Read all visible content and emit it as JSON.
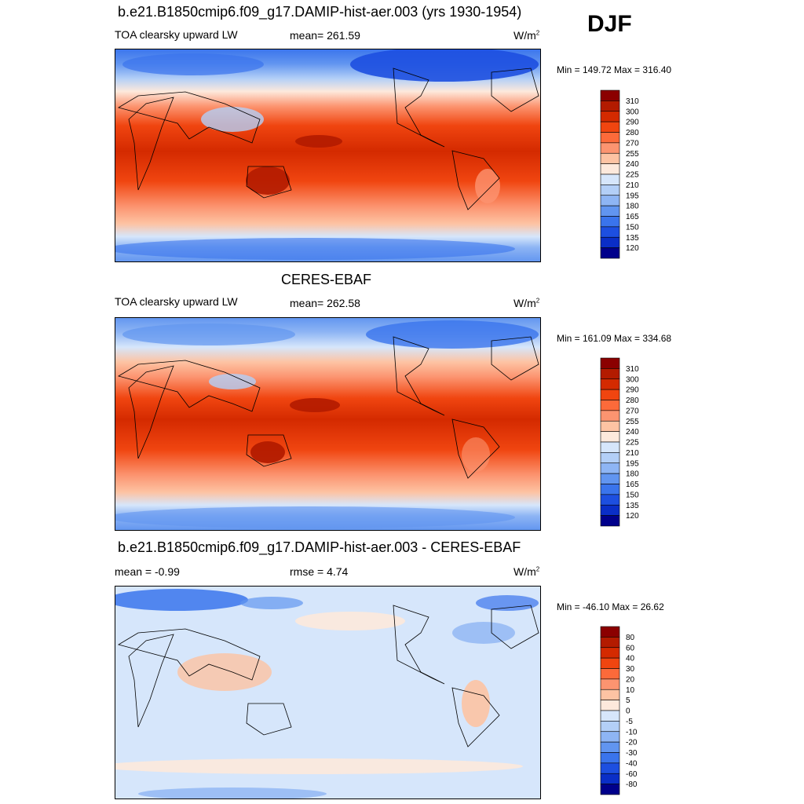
{
  "season": "DJF",
  "panels": [
    {
      "id": "model",
      "title": "b.e21.B1850cmip6.f09_g17.DAMIP-hist-aer.003 (yrs 1930-1954)",
      "left_label": "TOA clearsky upward LW",
      "center_label": "mean= 261.59",
      "units": "W/m",
      "units_sup": "2",
      "minmax": "Min = 149.72 Max = 316.40",
      "scale": "abs"
    },
    {
      "id": "obs",
      "title": "CERES-EBAF",
      "left_label": "TOA clearsky upward LW",
      "center_label": "mean= 262.58",
      "units": "W/m",
      "units_sup": "2",
      "minmax": "Min = 161.09 Max = 334.68",
      "scale": "abs"
    },
    {
      "id": "diff",
      "title": "b.e21.B1850cmip6.f09_g17.DAMIP-hist-aer.003 - CERES-EBAF",
      "left_label": "mean =  -0.99",
      "center_label": "rmse =   4.74",
      "units": "W/m",
      "units_sup": "2",
      "minmax": "Min = -46.10 Max =  26.62",
      "scale": "diff"
    }
  ],
  "colorbars": {
    "abs": {
      "labels": [
        "310",
        "300",
        "290",
        "280",
        "270",
        "255",
        "240",
        "225",
        "210",
        "195",
        "180",
        "165",
        "150",
        "135",
        "120"
      ],
      "colors": [
        "#8b0000",
        "#b31b00",
        "#d42a00",
        "#f04510",
        "#fc6a3a",
        "#fc9470",
        "#fdc3a3",
        "#fde9dc",
        "#d6e6fb",
        "#b3cff7",
        "#8eb5f4",
        "#6195f0",
        "#3a74ec",
        "#1d4fe0",
        "#0a2ec7",
        "#00008b"
      ]
    },
    "diff": {
      "labels": [
        "80",
        "60",
        "40",
        "30",
        "20",
        "10",
        "5",
        "0",
        "-5",
        "-10",
        "-20",
        "-30",
        "-40",
        "-60",
        "-80"
      ],
      "colors": [
        "#8b0000",
        "#b31b00",
        "#d42a00",
        "#f04510",
        "#fc6a3a",
        "#fc9470",
        "#fdc3a3",
        "#fde9dc",
        "#d6e6fb",
        "#b3cff7",
        "#8eb5f4",
        "#6195f0",
        "#3a74ec",
        "#1d4fe0",
        "#0a2ec7",
        "#00008b"
      ]
    }
  }
}
